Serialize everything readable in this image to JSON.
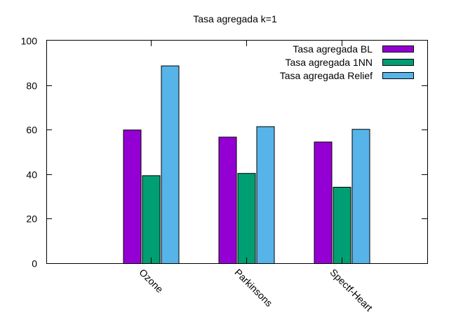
{
  "chart_data": {
    "type": "bar",
    "title": "Tasa agregada k=1",
    "xlabel": "",
    "ylabel": "",
    "categories": [
      "Ozone",
      "Parkinsons",
      "Spectf-Heart"
    ],
    "series": [
      {
        "name": "Tasa agregada BL",
        "values": [
          60.0,
          56.8,
          54.6
        ],
        "color": "#9400d3"
      },
      {
        "name": "Tasa agregada 1NN",
        "values": [
          39.5,
          40.5,
          34.3
        ],
        "color": "#009e73"
      },
      {
        "name": "Tasa agregada Relief",
        "values": [
          88.8,
          61.5,
          60.3
        ],
        "color": "#56b4e9"
      }
    ],
    "ylim": [
      0,
      100
    ],
    "yticks": [
      0,
      20,
      40,
      60,
      80,
      100
    ],
    "legend_position": "top-right",
    "grid": false
  }
}
